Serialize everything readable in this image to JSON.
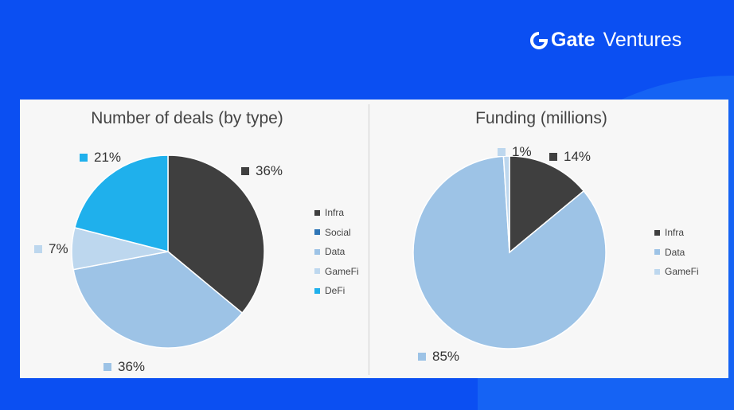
{
  "brand": {
    "name_bold": "Gate",
    "name_rest": "Ventures"
  },
  "chart_data": [
    {
      "type": "pie",
      "title": "Number of deals (by type)",
      "categories": [
        "Infra",
        "Social",
        "Data",
        "GameFi",
        "DeFi"
      ],
      "values": [
        36,
        0,
        36,
        7,
        21
      ],
      "labels": [
        "36%",
        "",
        "36%",
        "7%",
        "21%"
      ],
      "colors": [
        "#3f3f3f",
        "#2e75b6",
        "#9dc3e6",
        "#bdd7ee",
        "#1fb0ec"
      ],
      "legend": "right"
    },
    {
      "type": "pie",
      "title": "Funding (millions)",
      "categories": [
        "Infra",
        "Data",
        "GameFi"
      ],
      "values": [
        14,
        85,
        1
      ],
      "labels": [
        "14%",
        "85%",
        "1%"
      ],
      "colors": [
        "#3f3f3f",
        "#9dc3e6",
        "#bdd7ee"
      ],
      "legend": "right"
    }
  ]
}
